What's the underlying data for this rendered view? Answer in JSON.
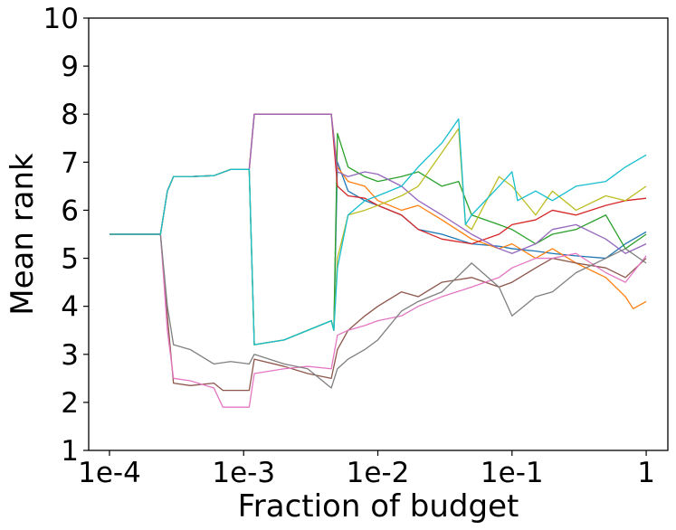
{
  "chart_data": {
    "type": "line",
    "title": "",
    "xlabel": "Fraction of budget",
    "ylabel": "Mean rank",
    "xscale": "log",
    "xlim": [
      0.0001,
      1
    ],
    "ylim": [
      1,
      10
    ],
    "x_ticks": [
      0.0001,
      0.001,
      0.01,
      0.1,
      1
    ],
    "x_tick_labels": [
      "1e-4",
      "1e-3",
      "1e-2",
      "1e-1",
      "1"
    ],
    "y_ticks": [
      1,
      2,
      3,
      4,
      5,
      6,
      7,
      8,
      9,
      10
    ],
    "y_tick_labels": [
      "1",
      "2",
      "3",
      "4",
      "5",
      "6",
      "7",
      "8",
      "9",
      "10"
    ],
    "grid": false,
    "legend": "none",
    "series": [
      {
        "color": "#1f77b4",
        "points": [
          [
            0.0001,
            5.5
          ],
          [
            0.00024,
            5.5
          ],
          [
            0.00027,
            6.4
          ],
          [
            0.0003,
            6.7
          ],
          [
            0.0004,
            6.7
          ],
          [
            0.0006,
            6.72
          ],
          [
            0.0008,
            6.85
          ],
          [
            0.0011,
            6.85
          ],
          [
            0.0012,
            3.2
          ],
          [
            0.002,
            3.3
          ],
          [
            0.003,
            3.5
          ],
          [
            0.0045,
            3.7
          ],
          [
            0.0047,
            3.5
          ],
          [
            0.005,
            7.0
          ],
          [
            0.006,
            6.4
          ],
          [
            0.008,
            6.2
          ],
          [
            0.01,
            6.1
          ],
          [
            0.015,
            5.9
          ],
          [
            0.02,
            5.6
          ],
          [
            0.03,
            5.5
          ],
          [
            0.05,
            5.3
          ],
          [
            0.08,
            5.25
          ],
          [
            0.1,
            5.2
          ],
          [
            0.15,
            5.15
          ],
          [
            0.2,
            5.1
          ],
          [
            0.3,
            5.05
          ],
          [
            0.5,
            5.0
          ],
          [
            0.7,
            5.3
          ],
          [
            1,
            5.55
          ]
        ]
      },
      {
        "color": "#ff7f0e",
        "points": [
          [
            0.0001,
            5.5
          ],
          [
            0.00024,
            5.5
          ],
          [
            0.00027,
            6.4
          ],
          [
            0.0003,
            6.7
          ],
          [
            0.0004,
            6.7
          ],
          [
            0.0006,
            6.72
          ],
          [
            0.0008,
            6.85
          ],
          [
            0.0011,
            6.85
          ],
          [
            0.0012,
            8.0
          ],
          [
            0.002,
            8.0
          ],
          [
            0.003,
            8.0
          ],
          [
            0.0045,
            8.0
          ],
          [
            0.005,
            6.9
          ],
          [
            0.006,
            6.6
          ],
          [
            0.008,
            6.5
          ],
          [
            0.01,
            6.2
          ],
          [
            0.015,
            6.0
          ],
          [
            0.02,
            6.1
          ],
          [
            0.03,
            5.8
          ],
          [
            0.05,
            5.4
          ],
          [
            0.08,
            5.2
          ],
          [
            0.1,
            5.3
          ],
          [
            0.15,
            5.0
          ],
          [
            0.2,
            5.2
          ],
          [
            0.3,
            4.9
          ],
          [
            0.5,
            4.6
          ],
          [
            0.7,
            4.2
          ],
          [
            0.8,
            3.95
          ],
          [
            1,
            4.1
          ]
        ]
      },
      {
        "color": "#2ca02c",
        "points": [
          [
            0.0001,
            5.5
          ],
          [
            0.00024,
            5.5
          ],
          [
            0.00027,
            6.4
          ],
          [
            0.0003,
            6.7
          ],
          [
            0.0004,
            6.7
          ],
          [
            0.0006,
            6.72
          ],
          [
            0.0008,
            6.85
          ],
          [
            0.0011,
            6.85
          ],
          [
            0.0012,
            3.2
          ],
          [
            0.002,
            3.3
          ],
          [
            0.003,
            3.5
          ],
          [
            0.0045,
            3.7
          ],
          [
            0.0047,
            3.5
          ],
          [
            0.005,
            7.6
          ],
          [
            0.006,
            6.9
          ],
          [
            0.008,
            6.7
          ],
          [
            0.01,
            6.6
          ],
          [
            0.015,
            6.7
          ],
          [
            0.02,
            6.8
          ],
          [
            0.03,
            6.5
          ],
          [
            0.04,
            6.6
          ],
          [
            0.05,
            5.9
          ],
          [
            0.08,
            5.7
          ],
          [
            0.1,
            5.6
          ],
          [
            0.15,
            5.3
          ],
          [
            0.2,
            5.5
          ],
          [
            0.3,
            5.6
          ],
          [
            0.5,
            5.9
          ],
          [
            0.7,
            5.2
          ],
          [
            1,
            5.5
          ]
        ]
      },
      {
        "color": "#d62728",
        "points": [
          [
            0.0001,
            5.5
          ],
          [
            0.00024,
            5.5
          ],
          [
            0.00027,
            6.4
          ],
          [
            0.0003,
            6.7
          ],
          [
            0.0004,
            6.7
          ],
          [
            0.0006,
            6.72
          ],
          [
            0.0008,
            6.85
          ],
          [
            0.0011,
            6.85
          ],
          [
            0.0012,
            8.0
          ],
          [
            0.002,
            8.0
          ],
          [
            0.003,
            8.0
          ],
          [
            0.0045,
            8.0
          ],
          [
            0.005,
            6.5
          ],
          [
            0.006,
            6.3
          ],
          [
            0.008,
            6.25
          ],
          [
            0.01,
            6.1
          ],
          [
            0.015,
            5.9
          ],
          [
            0.02,
            5.6
          ],
          [
            0.03,
            5.4
          ],
          [
            0.05,
            5.3
          ],
          [
            0.08,
            5.5
          ],
          [
            0.1,
            5.7
          ],
          [
            0.15,
            5.8
          ],
          [
            0.2,
            6.0
          ],
          [
            0.3,
            5.9
          ],
          [
            0.5,
            6.1
          ],
          [
            0.7,
            6.2
          ],
          [
            1,
            6.25
          ]
        ]
      },
      {
        "color": "#9467bd",
        "points": [
          [
            0.0001,
            5.5
          ],
          [
            0.00024,
            5.5
          ],
          [
            0.00027,
            6.4
          ],
          [
            0.0003,
            6.7
          ],
          [
            0.0004,
            6.7
          ],
          [
            0.0006,
            6.72
          ],
          [
            0.0008,
            6.85
          ],
          [
            0.0011,
            6.85
          ],
          [
            0.0012,
            8.0
          ],
          [
            0.002,
            8.0
          ],
          [
            0.003,
            8.0
          ],
          [
            0.0045,
            8.0
          ],
          [
            0.005,
            6.8
          ],
          [
            0.006,
            6.7
          ],
          [
            0.008,
            6.8
          ],
          [
            0.01,
            6.75
          ],
          [
            0.015,
            6.5
          ],
          [
            0.02,
            6.2
          ],
          [
            0.03,
            5.9
          ],
          [
            0.05,
            5.5
          ],
          [
            0.08,
            5.2
          ],
          [
            0.1,
            5.1
          ],
          [
            0.15,
            5.3
          ],
          [
            0.2,
            5.6
          ],
          [
            0.3,
            5.7
          ],
          [
            0.5,
            5.4
          ],
          [
            0.7,
            5.1
          ],
          [
            1,
            5.3
          ]
        ]
      },
      {
        "color": "#8c564b",
        "points": [
          [
            0.0001,
            5.5
          ],
          [
            0.00024,
            5.5
          ],
          [
            0.00027,
            3.8
          ],
          [
            0.0003,
            2.4
          ],
          [
            0.0004,
            2.35
          ],
          [
            0.0006,
            2.4
          ],
          [
            0.0007,
            2.25
          ],
          [
            0.0011,
            2.25
          ],
          [
            0.0012,
            2.9
          ],
          [
            0.002,
            2.75
          ],
          [
            0.003,
            2.6
          ],
          [
            0.0045,
            2.5
          ],
          [
            0.005,
            3.1
          ],
          [
            0.006,
            3.5
          ],
          [
            0.008,
            3.8
          ],
          [
            0.01,
            4.0
          ],
          [
            0.015,
            4.3
          ],
          [
            0.02,
            4.2
          ],
          [
            0.03,
            4.5
          ],
          [
            0.05,
            4.6
          ],
          [
            0.08,
            4.4
          ],
          [
            0.1,
            4.5
          ],
          [
            0.15,
            4.8
          ],
          [
            0.2,
            5.0
          ],
          [
            0.3,
            4.9
          ],
          [
            0.5,
            4.8
          ],
          [
            0.7,
            4.6
          ],
          [
            1,
            5.0
          ]
        ]
      },
      {
        "color": "#e377c2",
        "points": [
          [
            0.0001,
            5.5
          ],
          [
            0.00024,
            5.5
          ],
          [
            0.00027,
            3.5
          ],
          [
            0.0003,
            2.5
          ],
          [
            0.0004,
            2.45
          ],
          [
            0.0006,
            2.3
          ],
          [
            0.0007,
            1.9
          ],
          [
            0.0011,
            1.9
          ],
          [
            0.0012,
            2.6
          ],
          [
            0.002,
            2.7
          ],
          [
            0.003,
            2.75
          ],
          [
            0.0045,
            2.7
          ],
          [
            0.005,
            3.4
          ],
          [
            0.006,
            3.5
          ],
          [
            0.008,
            3.6
          ],
          [
            0.01,
            3.7
          ],
          [
            0.015,
            3.8
          ],
          [
            0.02,
            4.0
          ],
          [
            0.03,
            4.2
          ],
          [
            0.05,
            4.4
          ],
          [
            0.08,
            4.6
          ],
          [
            0.1,
            4.8
          ],
          [
            0.15,
            5.0
          ],
          [
            0.2,
            5.0
          ],
          [
            0.3,
            5.1
          ],
          [
            0.5,
            4.7
          ],
          [
            0.7,
            4.5
          ],
          [
            1,
            5.05
          ]
        ]
      },
      {
        "color": "#7f7f7f",
        "points": [
          [
            0.0001,
            5.5
          ],
          [
            0.00024,
            5.5
          ],
          [
            0.00027,
            4.0
          ],
          [
            0.0003,
            3.2
          ],
          [
            0.0004,
            3.1
          ],
          [
            0.0006,
            2.8
          ],
          [
            0.0008,
            2.85
          ],
          [
            0.0011,
            2.8
          ],
          [
            0.0012,
            3.0
          ],
          [
            0.002,
            2.8
          ],
          [
            0.003,
            2.7
          ],
          [
            0.0045,
            2.3
          ],
          [
            0.005,
            2.7
          ],
          [
            0.006,
            2.9
          ],
          [
            0.008,
            3.1
          ],
          [
            0.01,
            3.3
          ],
          [
            0.015,
            3.9
          ],
          [
            0.02,
            4.1
          ],
          [
            0.03,
            4.3
          ],
          [
            0.05,
            4.9
          ],
          [
            0.08,
            4.4
          ],
          [
            0.1,
            3.8
          ],
          [
            0.15,
            4.2
          ],
          [
            0.2,
            4.3
          ],
          [
            0.3,
            4.7
          ],
          [
            0.5,
            5.0
          ],
          [
            0.7,
            5.2
          ],
          [
            1,
            4.9
          ]
        ]
      },
      {
        "color": "#bcbd22",
        "points": [
          [
            0.0001,
            5.5
          ],
          [
            0.00024,
            5.5
          ],
          [
            0.00027,
            6.4
          ],
          [
            0.0003,
            6.7
          ],
          [
            0.0004,
            6.7
          ],
          [
            0.0006,
            6.72
          ],
          [
            0.0008,
            6.85
          ],
          [
            0.0011,
            6.85
          ],
          [
            0.0012,
            3.2
          ],
          [
            0.002,
            3.3
          ],
          [
            0.003,
            3.5
          ],
          [
            0.0045,
            3.7
          ],
          [
            0.0047,
            3.5
          ],
          [
            0.005,
            5.0
          ],
          [
            0.006,
            5.9
          ],
          [
            0.008,
            6.0
          ],
          [
            0.01,
            6.1
          ],
          [
            0.015,
            6.3
          ],
          [
            0.02,
            6.5
          ],
          [
            0.03,
            7.2
          ],
          [
            0.04,
            7.7
          ],
          [
            0.045,
            5.7
          ],
          [
            0.05,
            5.6
          ],
          [
            0.08,
            6.7
          ],
          [
            0.1,
            6.5
          ],
          [
            0.15,
            5.9
          ],
          [
            0.2,
            6.4
          ],
          [
            0.3,
            6.0
          ],
          [
            0.5,
            6.3
          ],
          [
            0.7,
            6.2
          ],
          [
            1,
            6.5
          ]
        ]
      },
      {
        "color": "#17becf",
        "points": [
          [
            0.0001,
            5.5
          ],
          [
            0.00024,
            5.5
          ],
          [
            0.00027,
            6.4
          ],
          [
            0.0003,
            6.7
          ],
          [
            0.0004,
            6.7
          ],
          [
            0.0006,
            6.72
          ],
          [
            0.0008,
            6.85
          ],
          [
            0.0011,
            6.85
          ],
          [
            0.0012,
            3.2
          ],
          [
            0.002,
            3.3
          ],
          [
            0.003,
            3.5
          ],
          [
            0.0045,
            3.7
          ],
          [
            0.0047,
            3.5
          ],
          [
            0.005,
            4.8
          ],
          [
            0.006,
            5.9
          ],
          [
            0.008,
            6.2
          ],
          [
            0.01,
            6.3
          ],
          [
            0.015,
            6.5
          ],
          [
            0.02,
            6.9
          ],
          [
            0.03,
            7.4
          ],
          [
            0.04,
            7.9
          ],
          [
            0.045,
            5.7
          ],
          [
            0.05,
            5.9
          ],
          [
            0.08,
            6.5
          ],
          [
            0.1,
            6.8
          ],
          [
            0.11,
            6.2
          ],
          [
            0.15,
            6.4
          ],
          [
            0.2,
            6.2
          ],
          [
            0.3,
            6.5
          ],
          [
            0.5,
            6.6
          ],
          [
            0.7,
            6.9
          ],
          [
            1,
            7.15
          ]
        ]
      }
    ]
  }
}
